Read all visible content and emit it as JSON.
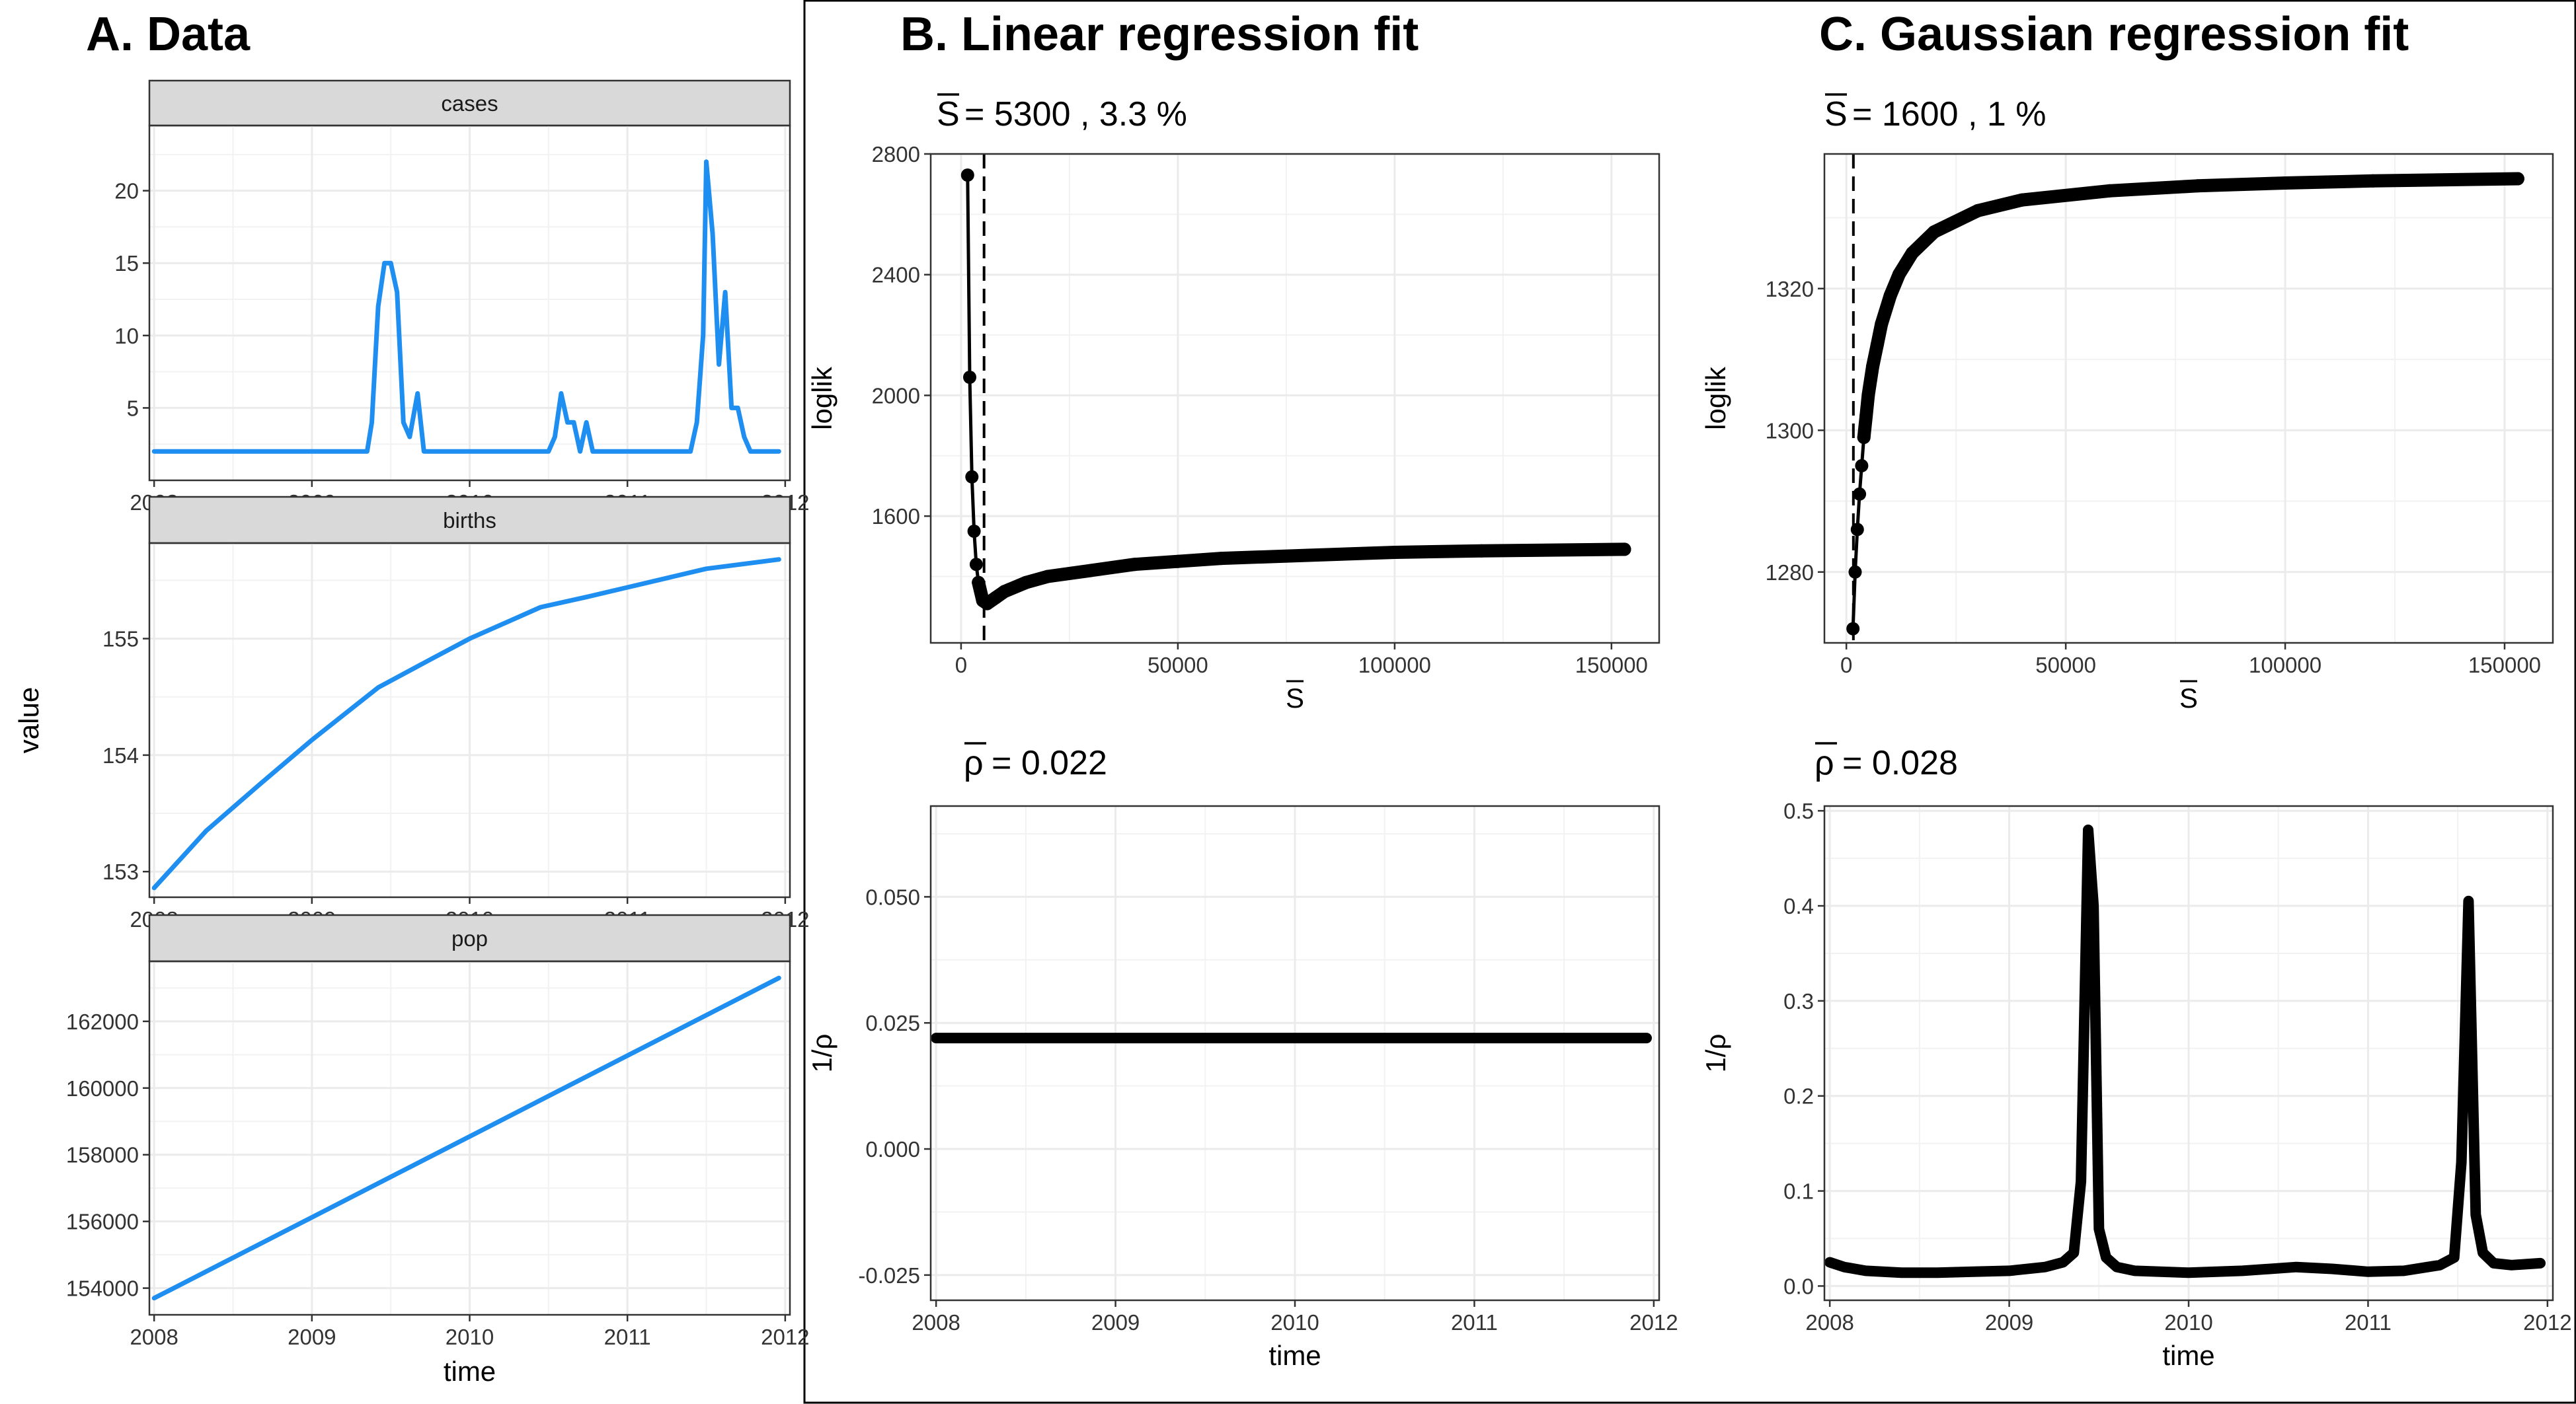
{
  "panels": {
    "a": {
      "title": "A. Data"
    },
    "b": {
      "title": "B. Linear regression fit"
    },
    "c": {
      "title": "C. Gaussian regression fit"
    }
  },
  "colors": {
    "series": "#1f8ef1",
    "fit": "#000000",
    "grid": "#ebebeb",
    "strip": "#d9d9d9"
  },
  "chart_data": [
    {
      "id": "data_cases",
      "type": "line",
      "facet": "cases",
      "xlabel": "time",
      "ylabel": "value",
      "xlim": [
        2007.97,
        2012.03
      ],
      "ylim": [
        0.0,
        24.5
      ],
      "xticks": [
        2008,
        2009,
        2010,
        2011,
        2012
      ],
      "yticks": [
        5,
        10,
        15,
        20
      ],
      "x": [
        2008.0,
        2008.5,
        2009.0,
        2009.35,
        2009.38,
        2009.42,
        2009.46,
        2009.5,
        2009.54,
        2009.58,
        2009.62,
        2009.67,
        2009.71,
        2009.75,
        2010.0,
        2010.4,
        2010.5,
        2010.54,
        2010.58,
        2010.62,
        2010.66,
        2010.7,
        2010.74,
        2010.78,
        2010.82,
        2011.0,
        2011.4,
        2011.44,
        2011.48,
        2011.5,
        2011.54,
        2011.58,
        2011.62,
        2011.66,
        2011.7,
        2011.74,
        2011.78,
        2011.82,
        2011.9,
        2011.96
      ],
      "y": [
        2,
        2,
        2,
        2,
        4,
        12,
        15,
        15,
        13,
        4,
        3,
        6,
        2,
        2,
        2,
        2,
        2,
        3,
        6,
        4,
        4,
        2,
        4,
        2,
        2,
        2,
        2,
        4,
        10,
        22,
        17,
        8,
        13,
        5,
        5,
        3,
        2,
        2,
        2,
        2
      ]
    },
    {
      "id": "data_births",
      "type": "line",
      "facet": "births",
      "xlim": [
        2007.97,
        2012.03
      ],
      "ylim": [
        152.78,
        155.82
      ],
      "xticks": [
        2008,
        2009,
        2010,
        2011,
        2012
      ],
      "yticks": [
        153,
        154,
        155
      ],
      "x": [
        2008.0,
        2008.33,
        2008.67,
        2009.0,
        2009.42,
        2009.75,
        2010.0,
        2010.45,
        2010.75,
        2011.0,
        2011.5,
        2011.96
      ],
      "y": [
        152.86,
        153.35,
        153.75,
        154.13,
        154.58,
        154.82,
        155.0,
        155.27,
        155.36,
        155.44,
        155.6,
        155.68
      ]
    },
    {
      "id": "data_pop",
      "type": "line",
      "facet": "pop",
      "xlim": [
        2007.97,
        2012.03
      ],
      "ylim": [
        153200,
        163800
      ],
      "xticks": [
        2008,
        2009,
        2010,
        2011,
        2012
      ],
      "yticks": [
        154000,
        156000,
        158000,
        160000,
        162000
      ],
      "x": [
        2008.0,
        2011.96
      ],
      "y": [
        153700,
        163300
      ]
    },
    {
      "id": "lin_loglik",
      "type": "scatter",
      "annotation": "= 5300 , 3.3 %",
      "xlabel": "S",
      "ylabel": "loglik",
      "xlim": [
        -7000,
        161000
      ],
      "ylim": [
        1180,
        2800
      ],
      "xticks": [
        0,
        50000,
        100000,
        150000
      ],
      "yticks": [
        1600,
        2000,
        2400,
        2800
      ],
      "vline": 5300,
      "x": [
        1500,
        2000,
        2500,
        3000,
        3500,
        4000,
        5000,
        6000,
        8000,
        10000,
        15000,
        20000,
        30000,
        40000,
        50000,
        60000,
        80000,
        100000,
        120000,
        153000
      ],
      "y": [
        2730,
        2060,
        1730,
        1550,
        1440,
        1380,
        1320,
        1310,
        1330,
        1350,
        1380,
        1400,
        1420,
        1440,
        1450,
        1460,
        1470,
        1480,
        1485,
        1490
      ]
    },
    {
      "id": "lin_rho",
      "type": "line",
      "annotation": "= 0.022",
      "xlabel": "time",
      "ylabel": "1/ρ",
      "xlim": [
        2007.97,
        2012.03
      ],
      "ylim": [
        -0.03,
        0.068
      ],
      "xticks": [
        2008,
        2009,
        2010,
        2011,
        2012
      ],
      "yticks": [
        -0.025,
        0.0,
        0.025,
        0.05
      ],
      "x": [
        2008.0,
        2011.96
      ],
      "y": [
        0.022,
        0.022
      ]
    },
    {
      "id": "gauss_loglik",
      "type": "scatter",
      "annotation": "= 1600 , 1 %",
      "xlabel": "S",
      "ylabel": "loglik",
      "xlim": [
        -5000,
        161000
      ],
      "ylim": [
        1270,
        1339
      ],
      "xticks": [
        0,
        50000,
        100000,
        150000
      ],
      "yticks": [
        1280,
        1300,
        1320
      ],
      "vline": 1600,
      "x": [
        1500,
        2000,
        2500,
        3000,
        3500,
        4000,
        4500,
        5000,
        6000,
        7000,
        8000,
        10000,
        12000,
        15000,
        20000,
        30000,
        40000,
        60000,
        80000,
        100000,
        120000,
        153000
      ],
      "y": [
        1272,
        1280,
        1286,
        1291,
        1295,
        1299,
        1302,
        1305,
        1309,
        1312,
        1315,
        1319,
        1322,
        1325,
        1328,
        1331,
        1332.5,
        1333.8,
        1334.5,
        1334.9,
        1335.2,
        1335.5
      ]
    },
    {
      "id": "gauss_rho",
      "type": "line",
      "annotation": "= 0.028",
      "xlabel": "time",
      "ylabel": "1/ρ",
      "xlim": [
        2007.97,
        2012.03
      ],
      "ylim": [
        -0.015,
        0.505
      ],
      "xticks": [
        2008,
        2009,
        2010,
        2011,
        2012
      ],
      "yticks": [
        0.0,
        0.1,
        0.2,
        0.3,
        0.4,
        0.5
      ],
      "x": [
        2008.0,
        2008.08,
        2008.2,
        2008.4,
        2008.6,
        2008.8,
        2009.0,
        2009.2,
        2009.3,
        2009.36,
        2009.4,
        2009.44,
        2009.47,
        2009.5,
        2009.54,
        2009.6,
        2009.7,
        2010.0,
        2010.3,
        2010.6,
        2010.8,
        2011.0,
        2011.2,
        2011.4,
        2011.48,
        2011.52,
        2011.56,
        2011.6,
        2011.64,
        2011.7,
        2011.8,
        2011.96
      ],
      "y": [
        0.025,
        0.02,
        0.016,
        0.014,
        0.014,
        0.015,
        0.016,
        0.02,
        0.025,
        0.035,
        0.11,
        0.48,
        0.4,
        0.06,
        0.03,
        0.02,
        0.016,
        0.014,
        0.016,
        0.02,
        0.018,
        0.015,
        0.016,
        0.022,
        0.03,
        0.13,
        0.405,
        0.075,
        0.035,
        0.024,
        0.022,
        0.024
      ]
    }
  ]
}
